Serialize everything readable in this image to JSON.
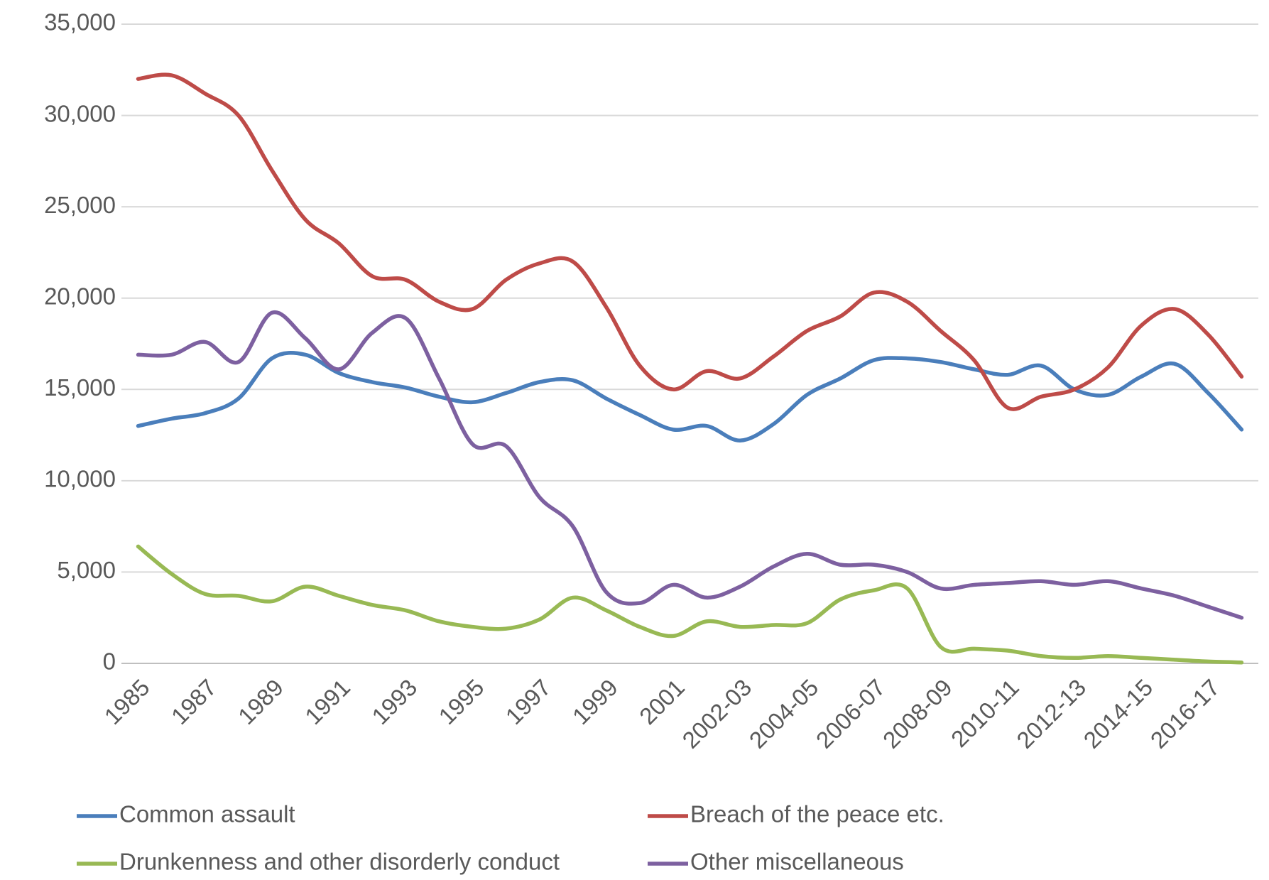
{
  "chart_data": {
    "type": "line",
    "categories": [
      "1985",
      null,
      "1987",
      null,
      "1989",
      null,
      "1991",
      null,
      "1993",
      null,
      "1995",
      null,
      "1997",
      null,
      "1999",
      null,
      "2001",
      null,
      "2002-03",
      null,
      "2004-05",
      null,
      "2006-07",
      null,
      "2008-09",
      null,
      "2010-11",
      null,
      "2012-13",
      null,
      "2014-15",
      null,
      "2016-17",
      null
    ],
    "series": [
      {
        "name": "Common assault",
        "color": "#4a7ebb",
        "values": [
          13000,
          13400,
          13700,
          14500,
          16700,
          16900,
          15900,
          15400,
          15100,
          14600,
          14300,
          14800,
          15400,
          15500,
          14500,
          13600,
          12800,
          13000,
          12200,
          13100,
          14700,
          15600,
          16600,
          16700,
          16500,
          16100,
          15800,
          16300,
          15000,
          14700,
          15700,
          16400,
          14800,
          12800
        ]
      },
      {
        "name": "Breach of the peace etc.",
        "color": "#be4b48",
        "values": [
          32000,
          32200,
          31200,
          30000,
          27000,
          24300,
          23000,
          21200,
          21000,
          19800,
          19400,
          21000,
          21900,
          22000,
          19500,
          16300,
          15000,
          16000,
          15600,
          16800,
          18200,
          19000,
          20300,
          19800,
          18200,
          16600,
          14000,
          14600,
          15000,
          16200,
          18500,
          19400,
          18000,
          15700
        ]
      },
      {
        "name": "Drunkenness and other disorderly conduct",
        "color": "#98b954",
        "values": [
          6400,
          4900,
          3800,
          3700,
          3400,
          4200,
          3700,
          3200,
          2900,
          2300,
          2000,
          1900,
          2400,
          3600,
          2900,
          2000,
          1500,
          2300,
          2000,
          2100,
          2200,
          3500,
          4000,
          4100,
          900,
          800,
          700,
          400,
          300,
          400,
          300,
          200,
          100,
          50
        ]
      },
      {
        "name": "Other miscellaneous",
        "color": "#7d60a0",
        "values": [
          16900,
          16900,
          17600,
          16500,
          19200,
          17800,
          16100,
          18100,
          18900,
          15600,
          12000,
          11900,
          9100,
          7500,
          3900,
          3300,
          4300,
          3600,
          4200,
          5300,
          6000,
          5400,
          5400,
          5000,
          4100,
          4300,
          4400,
          4500,
          4300,
          4500,
          4100,
          3700,
          3100,
          2500
        ]
      }
    ],
    "ylim": [
      0,
      35000
    ],
    "yticks": [
      0,
      {
        "value": 5000,
        "label": "5,000"
      },
      {
        "value": 10000,
        "label": "10,000"
      },
      {
        "value": 15000,
        "label": "15,000"
      },
      {
        "value": 20000,
        "label": "20,000"
      },
      {
        "value": 25000,
        "label": "25,000"
      },
      {
        "value": 30000,
        "label": "30,000"
      },
      {
        "value": 35000,
        "label": "35,000"
      }
    ],
    "grid": true
  }
}
